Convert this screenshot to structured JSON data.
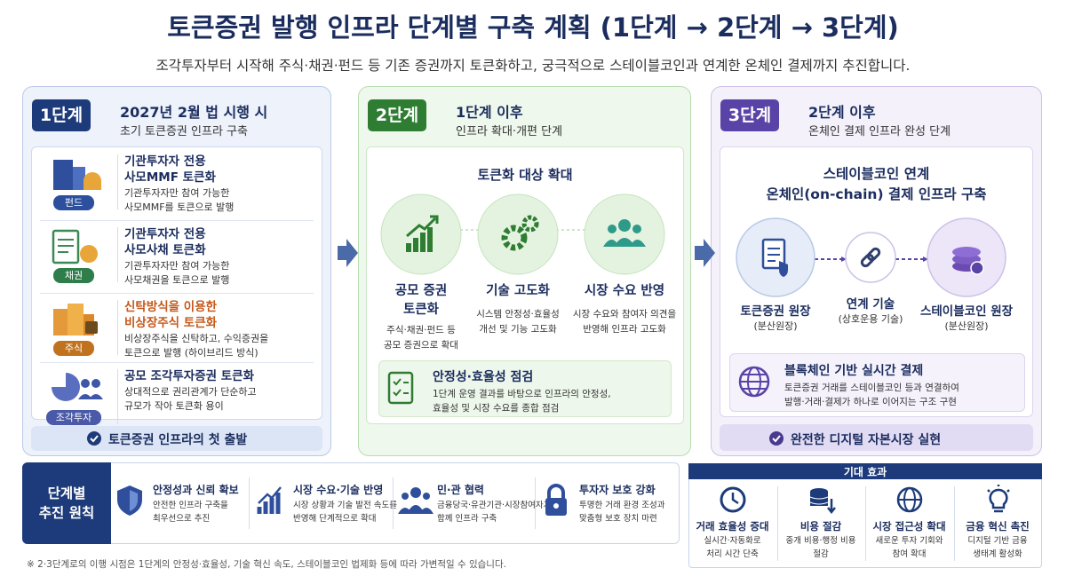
{
  "header": {
    "title": "토큰증권 발행 인프라 단계별 구축 계획 (1단계 → 2단계 → 3단계)",
    "subtitle": "조각투자부터 시작해 주식·채권·펀드 등 기존 증권까지 토큰화하고, 궁극적으로 스테이블코인과 연계한 온체인 결제까지 추진합니다."
  },
  "stage1": {
    "badge": "1단계",
    "title": "2027년 2월 법 시행 시",
    "subtitle": "초기 토큰증권 인프라 구축",
    "items": [
      {
        "tag": "펀드",
        "title": [
          "기관투자자 전용",
          "사모MMF 토큰화"
        ],
        "desc": [
          "기관투자자만 참여 가능한",
          "사모MMF를 토큰으로 발행"
        ]
      },
      {
        "tag": "채권",
        "title": [
          "기관투자자 전용",
          "사모사채 토큰화"
        ],
        "desc": [
          "기관투자자만 참여 가능한",
          "사모채권을 토큰으로 발행"
        ]
      },
      {
        "tag": "주식",
        "title": [
          "신탁방식을 이용한",
          "비상장주식 토큰화"
        ],
        "desc": [
          "비상장주식을 신탁하고, 수익증권을",
          "토큰으로 발행 (하이브리드 방식)"
        ]
      },
      {
        "tag": "조각투자",
        "title": [
          "공모 조각투자증권 토큰화"
        ],
        "desc": [
          "상대적으로 권리관계가 단순하고",
          "규모가 작아 토큰화 용이"
        ]
      }
    ],
    "footer": "토큰증권 인프라의 첫 출발"
  },
  "stage2": {
    "badge": "2단계",
    "title": "1단계 이후",
    "subtitle": "인프라 확대·개편 단계",
    "section_title": "토큰화 대상 확대",
    "items": [
      {
        "title": [
          "공모 증권",
          "토큰화"
        ],
        "desc": [
          "주식·채권·펀드 등",
          "공모 증권으로 확대"
        ]
      },
      {
        "title": [
          "기술 고도화"
        ],
        "desc": [
          "시스템 안정성·효율성",
          "개선 및 기능 고도화"
        ]
      },
      {
        "title": [
          "시장 수요 반영"
        ],
        "desc": [
          "시장 수요와 참여자 의견을",
          "반영해 인프라 고도화"
        ]
      }
    ],
    "check": {
      "title": "안정성·효율성 점검",
      "desc": [
        "1단계 운영 결과를 바탕으로 인프라의 안정성,",
        "효율성 및 시장 수요를 종합 점검"
      ]
    }
  },
  "stage3": {
    "badge": "3단계",
    "title": "2단계 이후",
    "subtitle": "온체인 결제 인프라 완성 단계",
    "section_title": [
      "스테이블코인 연계",
      "온체인(on-chain) 결제 인프라 구축"
    ],
    "nodes": [
      {
        "label": "토큰증권 원장",
        "sub": "(분산원장)"
      },
      {
        "label": "연계 기술",
        "sub": "(상호운용 기술)"
      },
      {
        "label": "스테이블코인 원장",
        "sub": "(분산원장)"
      }
    ],
    "settlement": {
      "title": "블록체인 기반 실시간 결제",
      "desc": [
        "토큰증권 거래를 스테이블코인 등과 연결하여",
        "발행·거래·결제가 하나로 이어지는 구조 구현"
      ]
    },
    "footer": "완전한 디지털 자본시장 실현"
  },
  "principles": {
    "title": [
      "단계별",
      "추진 원칙"
    ],
    "items": [
      {
        "title": "안정성과 신뢰 확보",
        "desc": [
          "안전한 인프라 구축을",
          "최우선으로 추진"
        ]
      },
      {
        "title": "시장 수요·기술 반영",
        "desc": [
          "시장 상황과 기술 발전 속도를",
          "반영해 단계적으로 확대"
        ]
      },
      {
        "title": "민·관 협력",
        "desc": [
          "금융당국·유관기관·시장참여자가",
          "함께 인프라 구축"
        ]
      },
      {
        "title": "투자자 보호 강화",
        "desc": [
          "투명한 거래 환경 조성과",
          "맞춤형 보호 장치 마련"
        ]
      }
    ]
  },
  "effects": {
    "title": "기대 효과",
    "items": [
      {
        "title": "거래 효율성 증대",
        "desc": [
          "실시간·자동화로",
          "처리 시간 단축"
        ]
      },
      {
        "title": "비용 절감",
        "desc": [
          "중개 비용·행정 비용",
          "절감"
        ]
      },
      {
        "title": "시장 접근성 확대",
        "desc": [
          "새로운 투자 기회와",
          "참여 확대"
        ]
      },
      {
        "title": "금융 혁신 촉진",
        "desc": [
          "디지털 기반 금융",
          "생태계 활성화"
        ]
      }
    ]
  },
  "footnote": "※ 2·3단계로의 이행 시점은 1단계의 안정성·효율성, 기술 혁신 속도, 스테이블코인 법제화 등에 따라 가변적일 수 있습니다."
}
